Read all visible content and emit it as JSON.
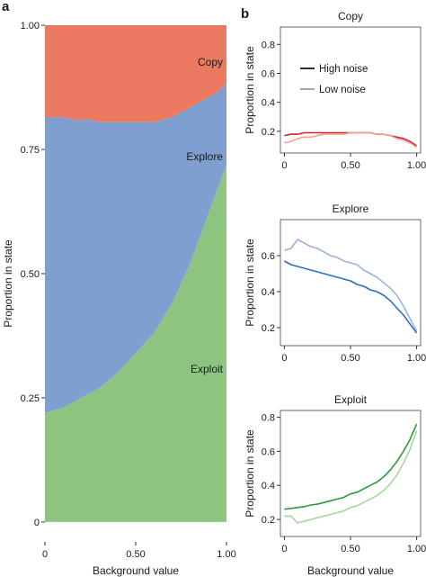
{
  "panels": {
    "a": "a",
    "b": "b"
  },
  "chart_data": [
    {
      "type": "area",
      "panel": "a",
      "xlabel": "Background value",
      "ylabel": "Proportion in state",
      "xlim": [
        0,
        1
      ],
      "ylim": [
        -0.04,
        1.0
      ],
      "xticks": [
        {
          "v": 0,
          "label": "0"
        },
        {
          "v": 0.5,
          "label": "0.50"
        },
        {
          "v": 1,
          "label": "1.00"
        }
      ],
      "yticks": [
        {
          "v": 0,
          "label": "0"
        },
        {
          "v": 0.25,
          "label": "0.25"
        },
        {
          "v": 0.5,
          "label": "0.50"
        },
        {
          "v": 0.75,
          "label": "0.75"
        },
        {
          "v": 1,
          "label": "1.00"
        }
      ],
      "x": [
        0,
        0.05,
        0.1,
        0.15,
        0.2,
        0.25,
        0.3,
        0.35,
        0.4,
        0.45,
        0.5,
        0.55,
        0.6,
        0.65,
        0.7,
        0.75,
        0.8,
        0.85,
        0.9,
        0.95,
        1.0
      ],
      "stack_order_bottom_to_top": [
        "Exploit",
        "Explore",
        "Copy"
      ],
      "series": [
        {
          "name": "Exploit",
          "color": "#8dc580",
          "values": [
            0.22,
            0.225,
            0.23,
            0.24,
            0.25,
            0.26,
            0.27,
            0.285,
            0.3,
            0.32,
            0.34,
            0.36,
            0.38,
            0.41,
            0.44,
            0.48,
            0.52,
            0.57,
            0.62,
            0.67,
            0.72
          ]
        },
        {
          "name": "Explore",
          "color": "#7f9fd0",
          "values": [
            0.595,
            0.59,
            0.585,
            0.57,
            0.56,
            0.55,
            0.535,
            0.52,
            0.505,
            0.485,
            0.465,
            0.445,
            0.425,
            0.4,
            0.375,
            0.345,
            0.315,
            0.275,
            0.235,
            0.195,
            0.165
          ]
        },
        {
          "name": "Copy",
          "color": "#ea7a5f",
          "values": [
            0.185,
            0.185,
            0.185,
            0.19,
            0.19,
            0.19,
            0.195,
            0.195,
            0.195,
            0.195,
            0.195,
            0.195,
            0.195,
            0.19,
            0.185,
            0.175,
            0.165,
            0.155,
            0.145,
            0.135,
            0.115
          ]
        }
      ],
      "labels": [
        {
          "text": "Copy",
          "series": "Copy"
        },
        {
          "text": "Explore",
          "series": "Explore"
        },
        {
          "text": "Exploit",
          "series": "Exploit"
        }
      ]
    },
    {
      "type": "line",
      "panel": "b",
      "title": "Copy",
      "ylabel": "Proportion in state",
      "xlim": [
        -0.03,
        1.03
      ],
      "ylim": [
        0.05,
        0.92
      ],
      "xticks": [
        {
          "v": 0,
          "label": "0"
        },
        {
          "v": 0.5,
          "label": "0.50"
        },
        {
          "v": 1,
          "label": "1.00"
        }
      ],
      "yticks": [
        {
          "v": 0.2,
          "label": "0.2"
        },
        {
          "v": 0.4,
          "label": "0.4"
        },
        {
          "v": 0.6,
          "label": "0.6"
        },
        {
          "v": 0.8,
          "label": "0.8"
        }
      ],
      "legend": {
        "position": "top-left",
        "entries": [
          {
            "label": "High noise",
            "series": 0
          },
          {
            "label": "Low noise",
            "series": 1
          }
        ]
      },
      "x": [
        0,
        0.05,
        0.1,
        0.15,
        0.2,
        0.25,
        0.3,
        0.35,
        0.4,
        0.45,
        0.5,
        0.55,
        0.6,
        0.65,
        0.7,
        0.75,
        0.8,
        0.85,
        0.9,
        0.95,
        1.0
      ],
      "series": [
        {
          "name": "High noise",
          "color": "#d0242b",
          "values": [
            0.17,
            0.18,
            0.18,
            0.19,
            0.19,
            0.19,
            0.19,
            0.19,
            0.19,
            0.19,
            0.19,
            0.19,
            0.19,
            0.19,
            0.18,
            0.18,
            0.17,
            0.16,
            0.15,
            0.13,
            0.1
          ]
        },
        {
          "name": "Low noise",
          "color": "#f1a493",
          "values": [
            0.12,
            0.13,
            0.15,
            0.16,
            0.16,
            0.17,
            0.18,
            0.18,
            0.18,
            0.18,
            0.19,
            0.19,
            0.19,
            0.19,
            0.18,
            0.18,
            0.17,
            0.15,
            0.14,
            0.12,
            0.09
          ]
        }
      ]
    },
    {
      "type": "line",
      "panel": "b",
      "title": "Explore",
      "ylabel": "Proportion in state",
      "xlim": [
        -0.03,
        1.03
      ],
      "ylim": [
        0.1,
        0.8
      ],
      "xticks": [
        {
          "v": 0,
          "label": "0"
        },
        {
          "v": 0.5,
          "label": "0.50"
        },
        {
          "v": 1,
          "label": "1.00"
        }
      ],
      "yticks": [
        {
          "v": 0.2,
          "label": "0.2"
        },
        {
          "v": 0.4,
          "label": "0.4"
        },
        {
          "v": 0.6,
          "label": "0.6"
        }
      ],
      "x": [
        0,
        0.05,
        0.1,
        0.15,
        0.2,
        0.25,
        0.3,
        0.35,
        0.4,
        0.45,
        0.5,
        0.55,
        0.6,
        0.65,
        0.7,
        0.75,
        0.8,
        0.85,
        0.9,
        0.95,
        1.0
      ],
      "series": [
        {
          "name": "High noise",
          "color": "#2f6fb4",
          "values": [
            0.57,
            0.55,
            0.54,
            0.53,
            0.52,
            0.51,
            0.5,
            0.49,
            0.48,
            0.47,
            0.46,
            0.44,
            0.43,
            0.41,
            0.4,
            0.38,
            0.35,
            0.31,
            0.27,
            0.22,
            0.17
          ]
        },
        {
          "name": "Low noise",
          "color": "#9bb3db",
          "values": [
            0.63,
            0.64,
            0.69,
            0.67,
            0.65,
            0.64,
            0.62,
            0.6,
            0.59,
            0.57,
            0.56,
            0.55,
            0.52,
            0.5,
            0.48,
            0.45,
            0.42,
            0.38,
            0.32,
            0.25,
            0.18
          ]
        }
      ]
    },
    {
      "type": "line",
      "panel": "b",
      "title": "Exploit",
      "ylabel": "Proportion in state",
      "xlabel": "Background value",
      "xlim": [
        -0.03,
        1.03
      ],
      "ylim": [
        0.1,
        0.84
      ],
      "xticks": [
        {
          "v": 0,
          "label": "0"
        },
        {
          "v": 0.5,
          "label": "0.50"
        },
        {
          "v": 1,
          "label": "1.00"
        }
      ],
      "yticks": [
        {
          "v": 0.2,
          "label": "0.2"
        },
        {
          "v": 0.4,
          "label": "0.4"
        },
        {
          "v": 0.6,
          "label": "0.6"
        },
        {
          "v": 0.8,
          "label": "0.8"
        }
      ],
      "x": [
        0,
        0.05,
        0.1,
        0.15,
        0.2,
        0.25,
        0.3,
        0.35,
        0.4,
        0.45,
        0.5,
        0.55,
        0.6,
        0.65,
        0.7,
        0.75,
        0.8,
        0.85,
        0.9,
        0.95,
        1.0
      ],
      "series": [
        {
          "name": "High noise",
          "color": "#2a9a3a",
          "values": [
            0.26,
            0.265,
            0.27,
            0.275,
            0.285,
            0.29,
            0.3,
            0.31,
            0.32,
            0.33,
            0.35,
            0.36,
            0.38,
            0.4,
            0.42,
            0.45,
            0.49,
            0.54,
            0.6,
            0.67,
            0.76
          ]
        },
        {
          "name": "Low noise",
          "color": "#a8d5a0",
          "values": [
            0.22,
            0.22,
            0.18,
            0.19,
            0.2,
            0.21,
            0.22,
            0.23,
            0.24,
            0.25,
            0.27,
            0.28,
            0.3,
            0.32,
            0.34,
            0.37,
            0.41,
            0.46,
            0.53,
            0.61,
            0.72
          ]
        }
      ]
    }
  ]
}
